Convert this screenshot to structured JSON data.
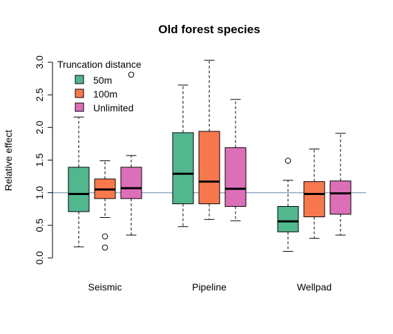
{
  "chart_data": {
    "type": "boxplot",
    "title": "Old forest species",
    "ylabel": "Relative effect",
    "xlabel": "",
    "ylim": [
      0,
      3
    ],
    "yticks": [
      "0.0",
      "0.5",
      "1.0",
      "1.5",
      "2.0",
      "2.5",
      "3.0"
    ],
    "reference_line": 1.0,
    "categories": [
      "Seismic",
      "Pipeline",
      "Wellpad"
    ],
    "legend": {
      "title": "Truncation distance",
      "placement": "top-left"
    },
    "series": [
      {
        "name": "50m",
        "color": "#52B68F",
        "boxes": [
          {
            "min": 0.17,
            "q1": 0.71,
            "median": 0.98,
            "q3": 1.39,
            "max": 2.16,
            "outliers": []
          },
          {
            "min": 0.48,
            "q1": 0.83,
            "median": 1.29,
            "q3": 1.92,
            "max": 2.65,
            "outliers": []
          },
          {
            "min": 0.1,
            "q1": 0.4,
            "median": 0.56,
            "q3": 0.79,
            "max": 1.19,
            "outliers": [
              1.49
            ]
          }
        ]
      },
      {
        "name": "100m",
        "color": "#F8784D",
        "boxes": [
          {
            "min": 0.62,
            "q1": 0.91,
            "median": 1.05,
            "q3": 1.21,
            "max": 1.49,
            "outliers": [
              0.33,
              0.16
            ]
          },
          {
            "min": 0.59,
            "q1": 0.83,
            "median": 1.17,
            "q3": 1.94,
            "max": 3.03,
            "outliers": []
          },
          {
            "min": 0.3,
            "q1": 0.63,
            "median": 0.98,
            "q3": 1.17,
            "max": 1.67,
            "outliers": []
          }
        ]
      },
      {
        "name": "Unlimited",
        "color": "#DD6FB9",
        "boxes": [
          {
            "min": 0.35,
            "q1": 0.91,
            "median": 1.07,
            "q3": 1.39,
            "max": 1.57,
            "outliers": [
              2.81
            ]
          },
          {
            "min": 0.57,
            "q1": 0.79,
            "median": 1.06,
            "q3": 1.69,
            "max": 2.43,
            "outliers": []
          },
          {
            "min": 0.35,
            "q1": 0.67,
            "median": 0.99,
            "q3": 1.18,
            "max": 1.91,
            "outliers": []
          }
        ]
      }
    ]
  }
}
